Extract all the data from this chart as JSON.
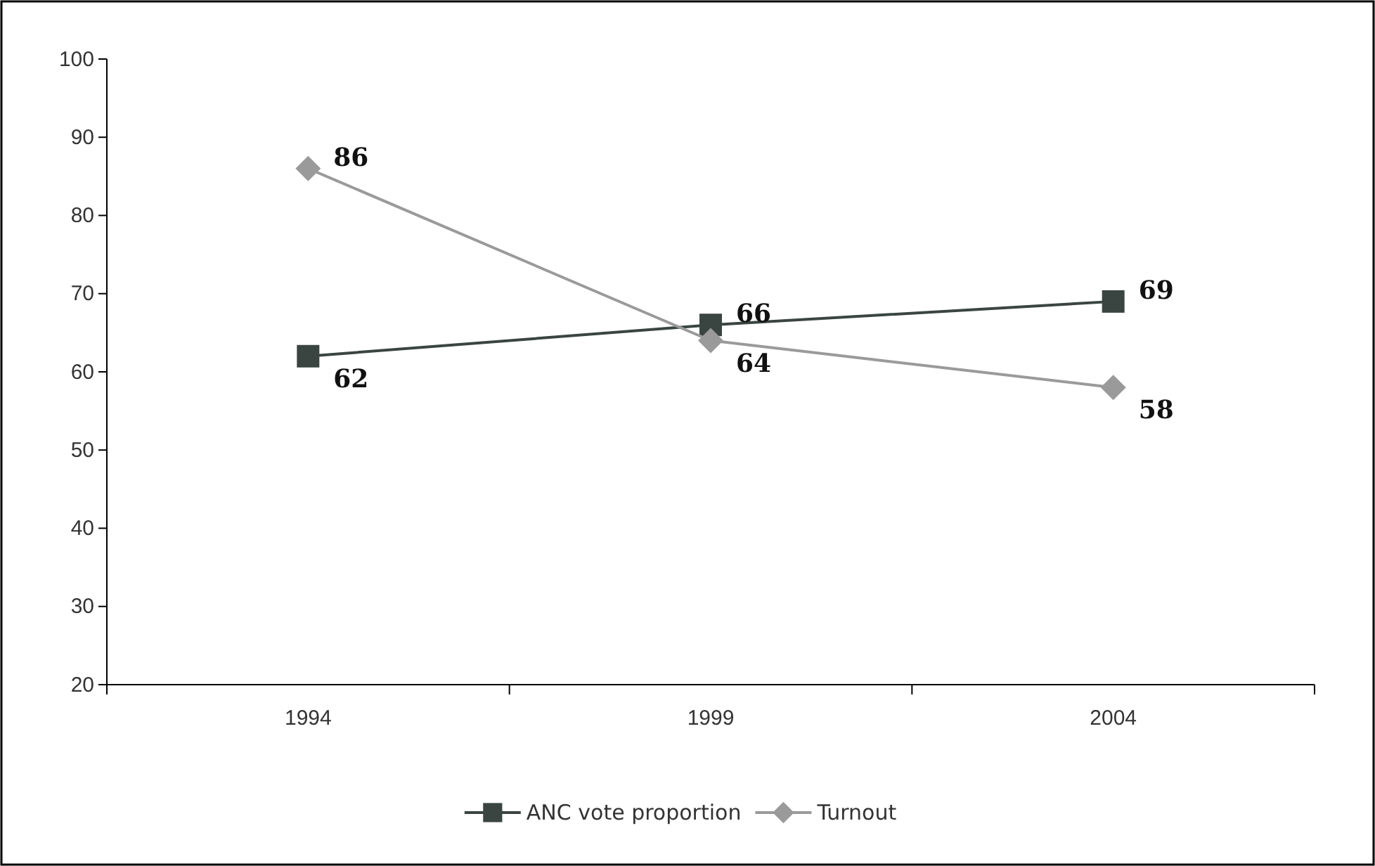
{
  "chart_data": {
    "type": "line",
    "categories": [
      "1994",
      "1999",
      "2004"
    ],
    "series": [
      {
        "name": "ANC vote proportion",
        "color": "#3a4542",
        "values": [
          62,
          66,
          69
        ],
        "marker": "square"
      },
      {
        "name": "Turnout",
        "color": "#9a9a9a",
        "values": [
          86,
          64,
          58
        ],
        "marker": "diamond"
      }
    ],
    "ylim": [
      20,
      100
    ],
    "yticks": [
      20,
      30,
      40,
      50,
      60,
      70,
      80,
      90,
      100
    ],
    "grid": false,
    "legend": "bottom",
    "data_labels": true
  }
}
